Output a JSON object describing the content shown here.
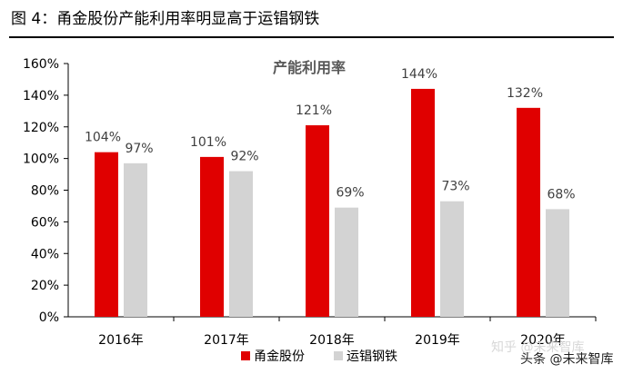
{
  "figure": {
    "label": "图 4：",
    "title": "甬金股份产能利用率明显高于运锠钢铁"
  },
  "watermark": {
    "line1": "知乎 @未来智库",
    "line2": "头条 @未来智库"
  },
  "chart_data": {
    "type": "bar",
    "title": "产能利用率",
    "categories": [
      "2016年",
      "2017年",
      "2018年",
      "2019年",
      "2020年"
    ],
    "series": [
      {
        "name": "甬金股份",
        "color": "#e00000",
        "values": [
          104,
          101,
          121,
          144,
          132
        ],
        "labels": [
          "104%",
          "101%",
          "121%",
          "144%",
          "132%"
        ]
      },
      {
        "name": "运锠钢铁",
        "color": "#d3d3d3",
        "values": [
          97,
          92,
          69,
          73,
          68
        ],
        "labels": [
          "97%",
          "92%",
          "69%",
          "73%",
          "68%"
        ]
      }
    ],
    "ylim": [
      0,
      160
    ],
    "yticks": [
      "0%",
      "20%",
      "40%",
      "60%",
      "80%",
      "100%",
      "120%",
      "140%",
      "160%"
    ],
    "grid": false,
    "legend": "bottom-right"
  }
}
